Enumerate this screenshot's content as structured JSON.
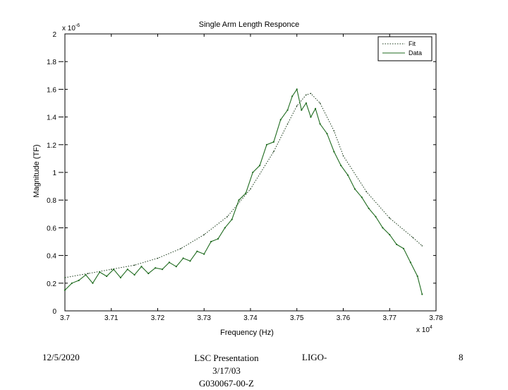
{
  "chart_data": {
    "type": "line",
    "title": "Single Arm Length Responce",
    "xlabel": "Frequency (Hz)",
    "ylabel": "Magnitude (TF)",
    "x_multiplier": "x 10",
    "x_exponent": "4",
    "y_multiplier": "x 10",
    "y_exponent": "-6",
    "xlim": [
      3.7,
      3.78
    ],
    "ylim": [
      0,
      2
    ],
    "x_ticks": [
      "3.7",
      "3.71",
      "3.72",
      "3.73",
      "3.74",
      "3.75",
      "3.76",
      "3.77",
      "3.78"
    ],
    "y_ticks": [
      "0",
      "0.2",
      "0.4",
      "0.6",
      "0.8",
      "1",
      "1.2",
      "1.4",
      "1.6",
      "1.8",
      "2"
    ],
    "legend_position": "top-right",
    "series": [
      {
        "name": "Fit",
        "style": "dotted",
        "color": "#1a3a1a",
        "x": [
          3.7,
          3.705,
          3.71,
          3.715,
          3.72,
          3.725,
          3.73,
          3.735,
          3.74,
          3.745,
          3.748,
          3.75,
          3.752,
          3.753,
          3.755,
          3.758,
          3.76,
          3.765,
          3.77,
          3.775,
          3.777
        ],
        "y": [
          0.24,
          0.27,
          0.3,
          0.33,
          0.38,
          0.45,
          0.55,
          0.68,
          0.88,
          1.15,
          1.35,
          1.48,
          1.56,
          1.57,
          1.5,
          1.3,
          1.12,
          0.86,
          0.67,
          0.53,
          0.47
        ]
      },
      {
        "name": "Data",
        "style": "solid",
        "color": "#1f6b1f",
        "x": [
          3.7,
          3.7015,
          3.703,
          3.7045,
          3.706,
          3.7075,
          3.709,
          3.7105,
          3.712,
          3.7135,
          3.715,
          3.7165,
          3.718,
          3.7195,
          3.721,
          3.7225,
          3.724,
          3.7255,
          3.727,
          3.7285,
          3.73,
          3.7315,
          3.733,
          3.7345,
          3.736,
          3.7375,
          3.739,
          3.7405,
          3.742,
          3.7435,
          3.745,
          3.7465,
          3.748,
          3.749,
          3.75,
          3.751,
          3.752,
          3.753,
          3.754,
          3.755,
          3.7565,
          3.758,
          3.7595,
          3.761,
          3.7625,
          3.764,
          3.7655,
          3.767,
          3.7685,
          3.77,
          3.7715,
          3.773,
          3.7745,
          3.776,
          3.777
        ],
        "y": [
          0.15,
          0.2,
          0.22,
          0.26,
          0.2,
          0.28,
          0.25,
          0.3,
          0.24,
          0.3,
          0.26,
          0.32,
          0.27,
          0.31,
          0.3,
          0.35,
          0.32,
          0.38,
          0.36,
          0.43,
          0.41,
          0.5,
          0.52,
          0.6,
          0.66,
          0.8,
          0.85,
          1.0,
          1.05,
          1.2,
          1.22,
          1.38,
          1.45,
          1.55,
          1.6,
          1.45,
          1.5,
          1.4,
          1.46,
          1.35,
          1.28,
          1.15,
          1.05,
          0.98,
          0.88,
          0.82,
          0.74,
          0.68,
          0.6,
          0.55,
          0.48,
          0.45,
          0.35,
          0.25,
          0.12
        ]
      }
    ]
  },
  "footer": {
    "date": "12/5/2020",
    "presentation": "LSC Presentation 3/17/03",
    "ligo": "LIGO-",
    "doc_id": "G030067-00-Z",
    "page": "8"
  }
}
